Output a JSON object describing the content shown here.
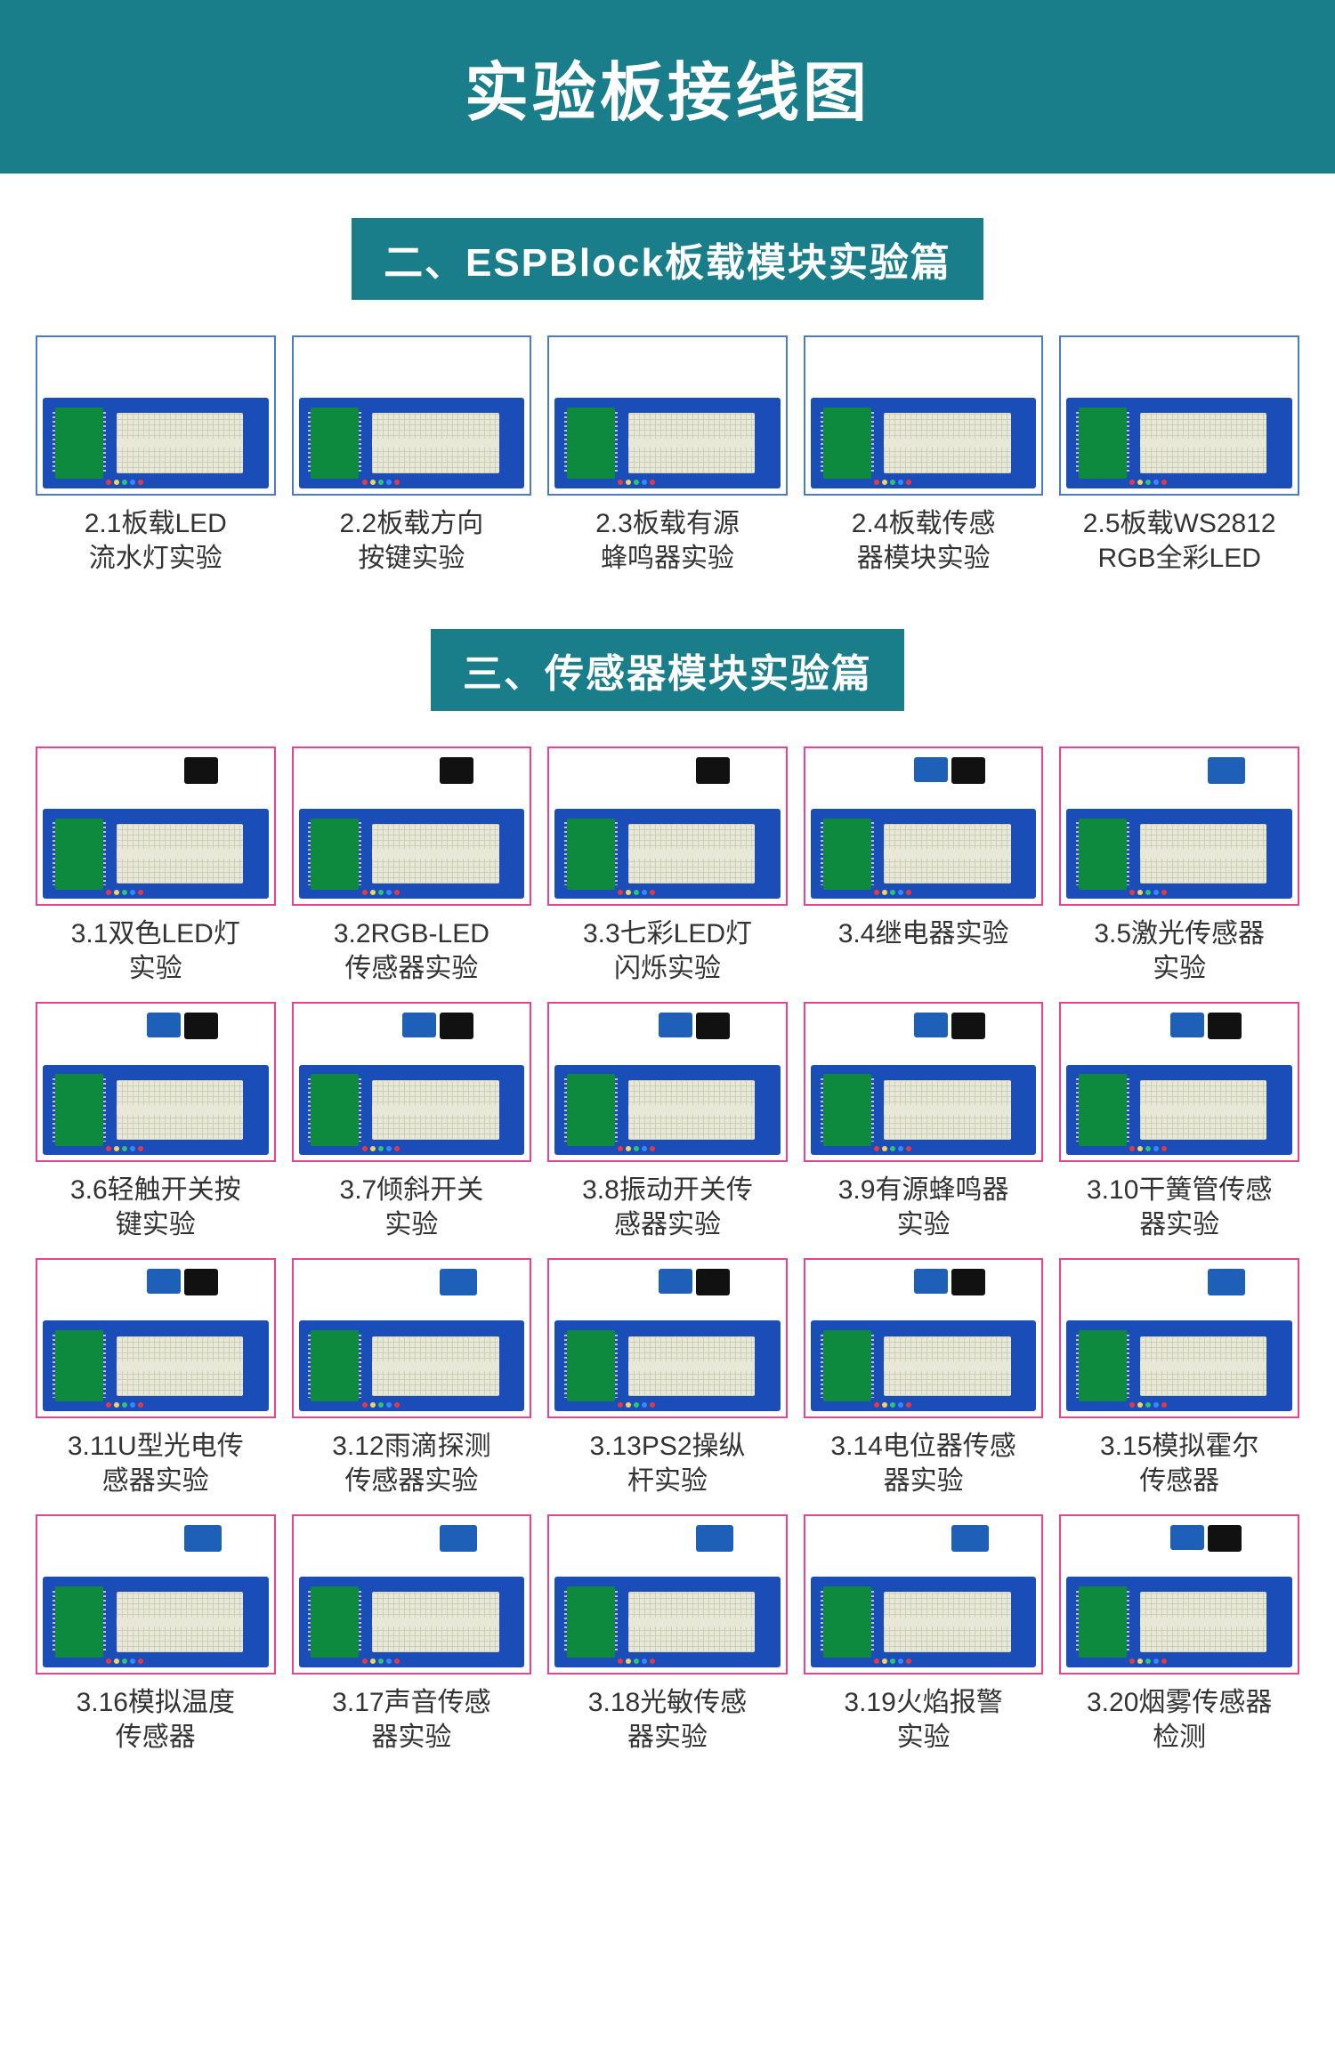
{
  "title": "实验板接线图",
  "colors": {
    "teal": "#1a7d8a",
    "white": "#ffffff",
    "pink_border": "#e84393",
    "blue_border": "#4a7bc8",
    "board_blue": "#1b4db8",
    "mcu_green": "#0d8a3d",
    "bread_bg": "#e8e8d8",
    "caption": "#333333",
    "led_red": "#e63946",
    "led_yellow": "#f4d35e",
    "led_green": "#2ec27e",
    "led_blue": "#3a86ff"
  },
  "sections": [
    {
      "heading": "二、ESPBlock板载模块实验篇",
      "border": "blue",
      "show_module": false,
      "items": [
        {
          "line1": "2.1板载LED",
          "line2": "流水灯实验"
        },
        {
          "line1": "2.2板载方向",
          "line2": "按键实验"
        },
        {
          "line1": "2.3板载有源",
          "line2": "蜂鸣器实验"
        },
        {
          "line1": "2.4板载传感",
          "line2": "器模块实验"
        },
        {
          "line1": "2.5板载WS2812",
          "line2": "RGB全彩LED"
        }
      ]
    },
    {
      "heading": "三、传感器模块实验篇",
      "border": "pink",
      "show_module": true,
      "items": [
        {
          "line1": "3.1双色LED灯",
          "line2": "实验",
          "mod": "black"
        },
        {
          "line1": "3.2RGB-LED",
          "line2": "传感器实验",
          "mod": "black"
        },
        {
          "line1": "3.3七彩LED灯",
          "line2": "闪烁实验",
          "mod": "black"
        },
        {
          "line1": "3.4继电器实验",
          "line2": "",
          "mod": "combo"
        },
        {
          "line1": "3.5激光传感器",
          "line2": "实验",
          "mod": "blue"
        },
        {
          "line1": "3.6轻触开关按",
          "line2": "键实验",
          "mod": "combo"
        },
        {
          "line1": "3.7倾斜开关",
          "line2": "实验",
          "mod": "combo"
        },
        {
          "line1": "3.8振动开关传",
          "line2": "感器实验",
          "mod": "combo"
        },
        {
          "line1": "3.9有源蜂鸣器",
          "line2": "实验",
          "mod": "combo"
        },
        {
          "line1": "3.10干簧管传感",
          "line2": "器实验",
          "mod": "combo"
        },
        {
          "line1": "3.11U型光电传",
          "line2": "感器实验",
          "mod": "combo"
        },
        {
          "line1": "3.12雨滴探测",
          "line2": "传感器实验",
          "mod": "blue"
        },
        {
          "line1": "3.13PS2操纵",
          "line2": "杆实验",
          "mod": "combo"
        },
        {
          "line1": "3.14电位器传感",
          "line2": "器实验",
          "mod": "combo"
        },
        {
          "line1": "3.15模拟霍尔",
          "line2": "传感器",
          "mod": "blue"
        },
        {
          "line1": "3.16模拟温度",
          "line2": "传感器",
          "mod": "blue"
        },
        {
          "line1": "3.17声音传感",
          "line2": "器实验",
          "mod": "blue"
        },
        {
          "line1": "3.18光敏传感",
          "line2": "器实验",
          "mod": "blue"
        },
        {
          "line1": "3.19火焰报警",
          "line2": "实验",
          "mod": "blue"
        },
        {
          "line1": "3.20烟雾传感器",
          "line2": "检测",
          "mod": "combo"
        }
      ]
    }
  ]
}
